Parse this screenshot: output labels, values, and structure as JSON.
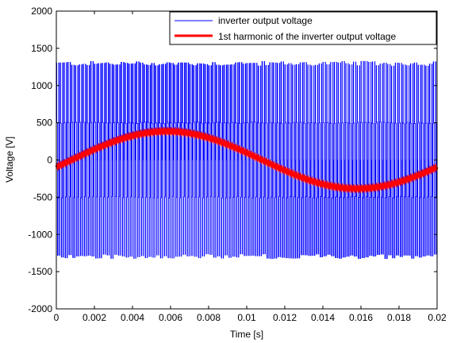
{
  "chart_data": {
    "type": "line",
    "xlabel": "Time [s]",
    "ylabel": "Voltage [V]",
    "xlim": [
      0,
      0.02
    ],
    "ylim": [
      -2000,
      2000
    ],
    "xticks": [
      "0",
      "0.002",
      "0.004",
      "0.006",
      "0.008",
      "0.01",
      "0.012",
      "0.014",
      "0.016",
      "0.018",
      "0.02"
    ],
    "yticks": [
      "-2000",
      "-1500",
      "-1000",
      "-500",
      "0",
      "500",
      "1000",
      "1500",
      "2000"
    ],
    "grid": false,
    "legend_position": "top-right",
    "series": [
      {
        "name": "inverter output voltage",
        "color": "#0000ff",
        "style": "thin",
        "description_values": {
          "pulse_levels_V": [
            -1300,
            -500,
            0,
            500,
            1300
          ],
          "switching_frequency_hz": 5000
        }
      },
      {
        "name": "1st harmonic of the inverter output voltage",
        "color": "#ff0000",
        "style": "thick",
        "amplitude_V": 385,
        "frequency_hz": 50,
        "phase_lag_s": 0.0008
      }
    ]
  }
}
